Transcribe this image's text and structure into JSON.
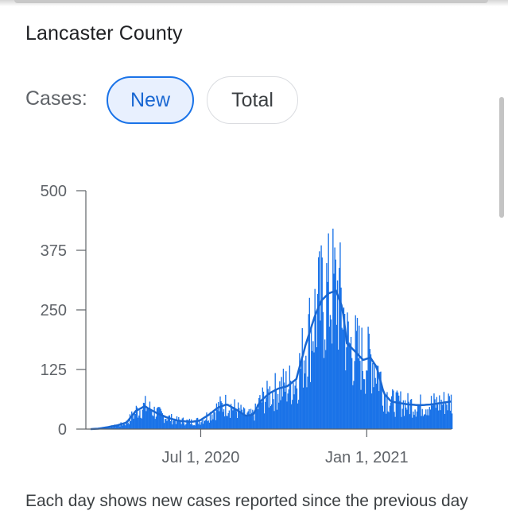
{
  "header": {
    "title": "Lancaster County"
  },
  "filter": {
    "label": "Cases:",
    "options": [
      {
        "label": "New",
        "selected": true
      },
      {
        "label": "Total",
        "selected": false
      }
    ],
    "accent_color": "#1a73e8"
  },
  "chart_data": {
    "type": "bar",
    "title": "",
    "xlabel": "",
    "ylabel": "",
    "ylim": [
      0,
      500
    ],
    "y_ticks": [
      "0",
      "125",
      "250",
      "375",
      "500"
    ],
    "x_ticks": [
      "Jul 1, 2020",
      "Jan 1, 2021"
    ],
    "x_range": [
      "2020-03-01",
      "2021-04-05"
    ],
    "bar_color": "#1a73e8",
    "average_line_color": "#1967d2",
    "grid": false,
    "series": [
      {
        "points": [
          [
            "2020-03-01",
            0
          ],
          [
            "2020-03-10",
            1
          ],
          [
            "2020-03-20",
            4
          ],
          [
            "2020-03-31",
            8
          ],
          [
            "2020-04-10",
            14
          ],
          [
            "2020-04-20",
            38
          ],
          [
            "2020-04-30",
            48
          ],
          [
            "2020-05-05",
            42
          ],
          [
            "2020-05-15",
            32
          ],
          [
            "2020-05-25",
            24
          ],
          [
            "2020-06-05",
            18
          ],
          [
            "2020-06-20",
            15
          ],
          [
            "2020-06-30",
            18
          ],
          [
            "2020-07-10",
            30
          ],
          [
            "2020-07-20",
            45
          ],
          [
            "2020-07-30",
            52
          ],
          [
            "2020-08-10",
            40
          ],
          [
            "2020-08-20",
            28
          ],
          [
            "2020-08-28",
            30
          ],
          [
            "2020-09-05",
            58
          ],
          [
            "2020-09-15",
            75
          ],
          [
            "2020-09-25",
            85
          ],
          [
            "2020-10-05",
            90
          ],
          [
            "2020-10-15",
            105
          ],
          [
            "2020-10-25",
            175
          ],
          [
            "2020-11-05",
            240
          ],
          [
            "2020-11-12",
            270
          ],
          [
            "2020-11-20",
            285
          ],
          [
            "2020-11-28",
            290
          ],
          [
            "2020-12-05",
            255
          ],
          [
            "2020-12-10",
            180
          ],
          [
            "2020-12-18",
            165
          ],
          [
            "2020-12-28",
            145
          ],
          [
            "2021-01-05",
            150
          ],
          [
            "2021-01-12",
            130
          ],
          [
            "2021-01-20",
            75
          ],
          [
            "2021-01-28",
            58
          ],
          [
            "2021-02-05",
            55
          ],
          [
            "2021-02-15",
            52
          ],
          [
            "2021-03-01",
            50
          ],
          [
            "2021-03-15",
            52
          ],
          [
            "2021-03-25",
            55
          ],
          [
            "2021-04-05",
            58
          ]
        ]
      }
    ]
  },
  "footer": {
    "caption": "Each day shows new cases reported since the previous day"
  }
}
